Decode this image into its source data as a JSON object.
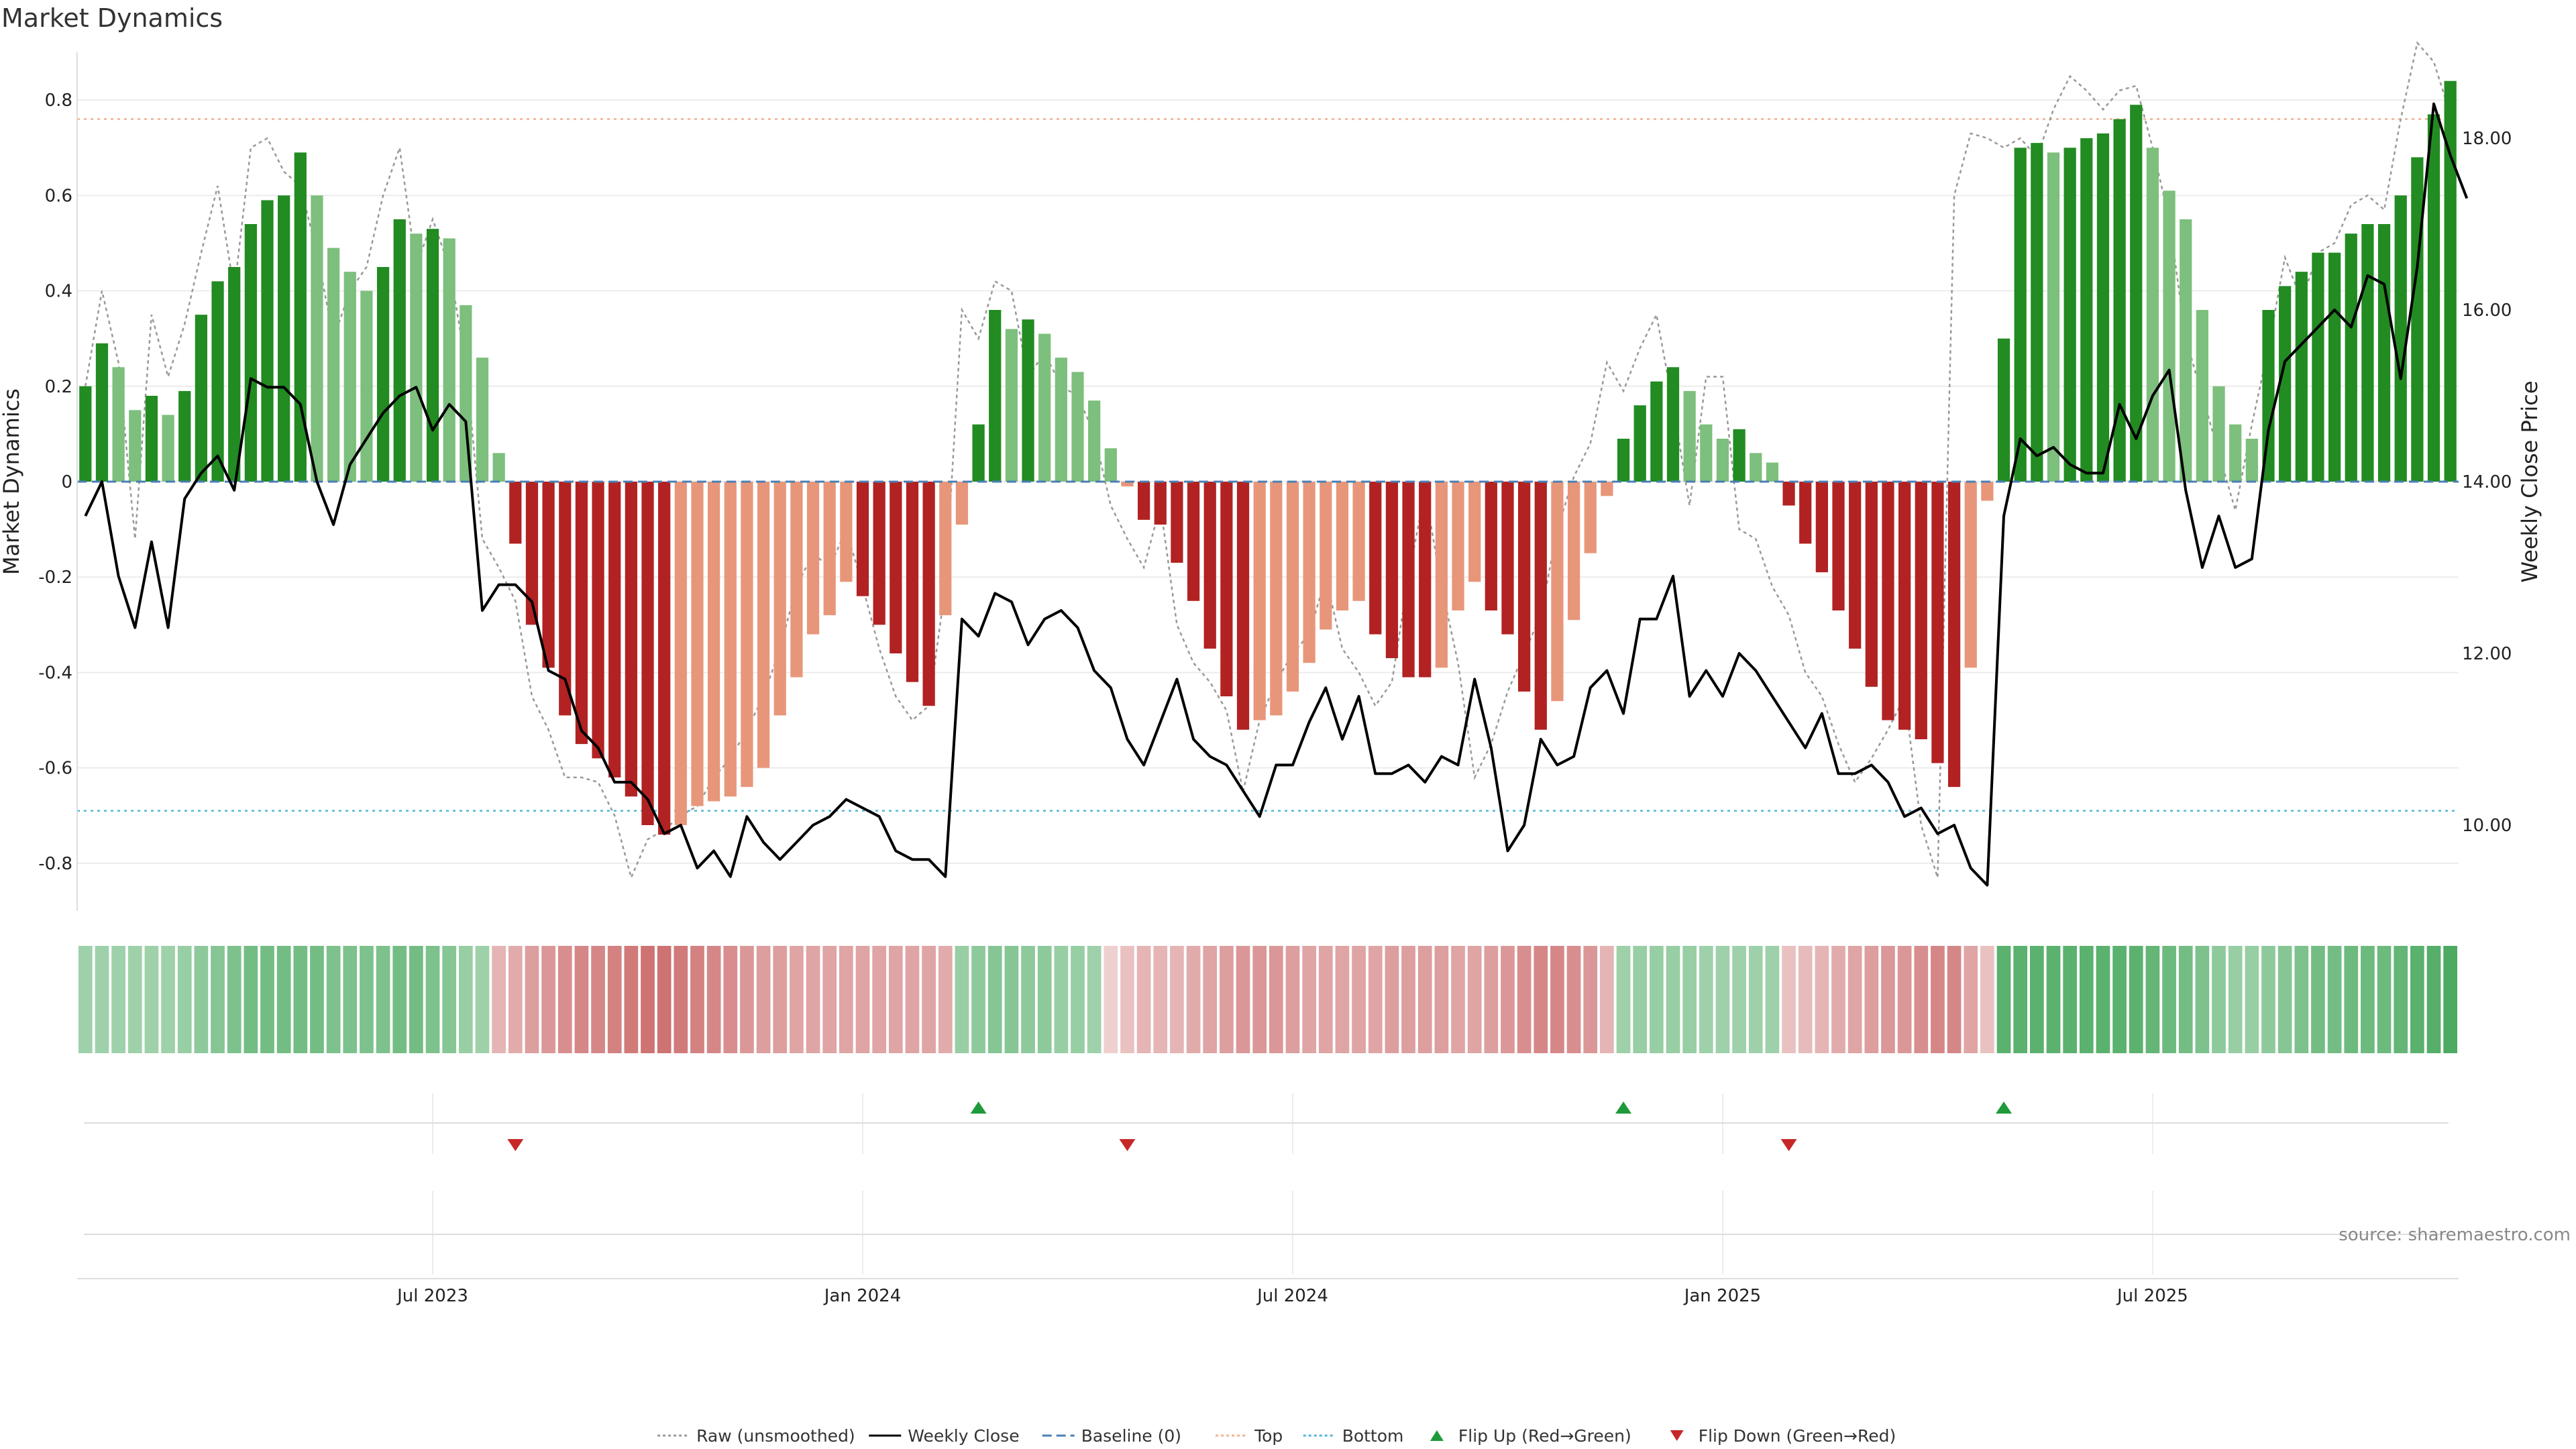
{
  "chart_data": {
    "type": "bar",
    "title": "Market Dynamics",
    "ylabel_left": "Market Dynamics",
    "ylabel_right": "Weekly Close Price",
    "ylim_left": [
      -0.9,
      0.9
    ],
    "yticks_left": [
      "0.8",
      "0.6",
      "0.4",
      "0.2",
      "0",
      "-0.2",
      "-0.4",
      "-0.6",
      "-0.8"
    ],
    "ylim_right": [
      9.0,
      19.0
    ],
    "yticks_right": [
      "18.00",
      "16.00",
      "14.00",
      "12.00",
      "10.00"
    ],
    "x_ticks": [
      "Jul 2023",
      "Jan 2024",
      "Jul 2024",
      "Jan 2025",
      "Jul 2025"
    ],
    "x_tick_week_index": [
      21,
      47,
      73,
      99,
      125
    ],
    "top_level": 0.76,
    "bottom_level": -0.69,
    "baseline": 0,
    "bars": [
      0.2,
      0.29,
      0.24,
      0.15,
      0.18,
      0.14,
      0.19,
      0.35,
      0.42,
      0.45,
      0.54,
      0.59,
      0.6,
      0.69,
      0.6,
      0.49,
      0.44,
      0.4,
      0.45,
      0.55,
      0.52,
      0.53,
      0.51,
      0.37,
      0.26,
      0.06,
      -0.13,
      -0.3,
      -0.39,
      -0.49,
      -0.55,
      -0.58,
      -0.62,
      -0.66,
      -0.72,
      -0.74,
      -0.72,
      -0.68,
      -0.67,
      -0.66,
      -0.64,
      -0.6,
      -0.49,
      -0.41,
      -0.32,
      -0.28,
      -0.21,
      -0.24,
      -0.3,
      -0.36,
      -0.42,
      -0.47,
      -0.28,
      -0.09,
      0.12,
      0.36,
      0.32,
      0.34,
      0.31,
      0.26,
      0.23,
      0.17,
      0.07,
      -0.01,
      -0.08,
      -0.09,
      -0.17,
      -0.25,
      -0.35,
      -0.45,
      -0.52,
      -0.5,
      -0.49,
      -0.44,
      -0.38,
      -0.31,
      -0.27,
      -0.25,
      -0.32,
      -0.37,
      -0.41,
      -0.41,
      -0.39,
      -0.27,
      -0.21,
      -0.27,
      -0.32,
      -0.44,
      -0.52,
      -0.46,
      -0.29,
      -0.15,
      -0.03,
      0.09,
      0.16,
      0.21,
      0.24,
      0.19,
      0.12,
      0.09,
      0.11,
      0.06,
      0.04,
      -0.05,
      -0.13,
      -0.19,
      -0.27,
      -0.35,
      -0.43,
      -0.5,
      -0.52,
      -0.54,
      -0.59,
      -0.64,
      -0.39,
      -0.04,
      0.3,
      0.7,
      0.71,
      0.69,
      0.7,
      0.72,
      0.73,
      0.76,
      0.79,
      0.7,
      0.61,
      0.55,
      0.36,
      0.2,
      0.12,
      0.09,
      0.36,
      0.41,
      0.44,
      0.48,
      0.48,
      0.52,
      0.54,
      0.54,
      0.6,
      0.68,
      0.77,
      0.84
    ],
    "raw": [
      0.2,
      0.4,
      0.25,
      -0.12,
      0.35,
      0.22,
      0.33,
      0.48,
      0.62,
      0.4,
      0.7,
      0.72,
      0.65,
      0.62,
      0.48,
      0.3,
      0.4,
      0.45,
      0.6,
      0.7,
      0.45,
      0.55,
      0.45,
      0.25,
      -0.12,
      -0.18,
      -0.25,
      -0.45,
      -0.52,
      -0.62,
      -0.62,
      -0.63,
      -0.7,
      -0.83,
      -0.75,
      -0.73,
      -0.7,
      -0.68,
      -0.62,
      -0.58,
      -0.52,
      -0.45,
      -0.35,
      -0.22,
      -0.15,
      -0.18,
      -0.1,
      -0.22,
      -0.35,
      -0.45,
      -0.5,
      -0.47,
      -0.22,
      0.36,
      0.3,
      0.42,
      0.4,
      0.22,
      0.27,
      0.2,
      0.18,
      0.1,
      -0.05,
      -0.12,
      -0.18,
      -0.05,
      -0.3,
      -0.38,
      -0.42,
      -0.48,
      -0.65,
      -0.5,
      -0.42,
      -0.36,
      -0.32,
      -0.2,
      -0.35,
      -0.4,
      -0.47,
      -0.42,
      -0.2,
      -0.02,
      -0.22,
      -0.38,
      -0.62,
      -0.55,
      -0.44,
      -0.36,
      -0.28,
      -0.1,
      0.01,
      0.08,
      0.25,
      0.19,
      0.28,
      0.35,
      0.16,
      -0.05,
      0.22,
      0.22,
      -0.1,
      -0.12,
      -0.22,
      -0.28,
      -0.4,
      -0.45,
      -0.55,
      -0.63,
      -0.58,
      -0.52,
      -0.45,
      -0.72,
      -0.83,
      0.6,
      0.73,
      0.72,
      0.7,
      0.72,
      0.68,
      0.78,
      0.85,
      0.82,
      0.78,
      0.82,
      0.83,
      0.7,
      0.55,
      0.3,
      0.18,
      0.06,
      -0.06,
      0.12,
      0.28,
      0.47,
      0.38,
      0.48,
      0.5,
      0.58,
      0.6,
      0.57,
      0.76,
      0.92,
      0.88,
      0.77
    ],
    "close": [
      13.6,
      14.0,
      12.9,
      12.3,
      13.3,
      12.3,
      13.8,
      14.1,
      14.3,
      13.9,
      15.2,
      15.1,
      15.1,
      14.9,
      14.0,
      13.5,
      14.2,
      14.5,
      14.8,
      15.0,
      15.1,
      14.6,
      14.9,
      14.7,
      12.5,
      12.8,
      12.8,
      12.6,
      11.8,
      11.7,
      11.1,
      10.9,
      10.5,
      10.5,
      10.3,
      9.9,
      10.0,
      9.5,
      9.7,
      9.4,
      10.1,
      9.8,
      9.6,
      9.8,
      10.0,
      10.1,
      10.3,
      10.2,
      10.1,
      9.7,
      9.6,
      9.6,
      9.4,
      12.4,
      12.2,
      12.7,
      12.6,
      12.1,
      12.4,
      12.5,
      12.3,
      11.8,
      11.6,
      11.0,
      10.7,
      11.2,
      11.7,
      11.0,
      10.8,
      10.7,
      10.4,
      10.1,
      10.7,
      10.7,
      11.2,
      11.6,
      11.0,
      11.5,
      10.6,
      10.6,
      10.7,
      10.5,
      10.8,
      10.7,
      11.7,
      10.9,
      9.7,
      10.0,
      11.0,
      10.7,
      10.8,
      11.6,
      11.8,
      11.3,
      12.4,
      12.4,
      12.9,
      11.5,
      11.8,
      11.5,
      12.0,
      11.8,
      11.5,
      11.2,
      10.9,
      11.3,
      10.6,
      10.6,
      10.7,
      10.5,
      10.1,
      10.2,
      9.9,
      10.0,
      9.5,
      9.3,
      13.6,
      14.5,
      14.3,
      14.4,
      14.2,
      14.1,
      14.1,
      14.9,
      14.5,
      15.0,
      15.3,
      13.9,
      13.0,
      13.6,
      13.0,
      13.1,
      14.6,
      15.4,
      15.6,
      15.8,
      16.0,
      15.8,
      16.4,
      16.3,
      15.2,
      16.5,
      18.4,
      17.8,
      17.3
    ],
    "regime_strip": [
      0.25,
      0.25,
      0.25,
      0.25,
      0.25,
      0.25,
      0.3,
      0.35,
      0.4,
      0.45,
      0.5,
      0.5,
      0.5,
      0.5,
      0.5,
      0.45,
      0.45,
      0.45,
      0.45,
      0.5,
      0.5,
      0.45,
      0.4,
      0.3,
      0.25,
      -0.3,
      -0.35,
      -0.45,
      -0.5,
      -0.55,
      -0.6,
      -0.6,
      -0.65,
      -0.7,
      -0.75,
      -0.75,
      -0.7,
      -0.65,
      -0.6,
      -0.55,
      -0.5,
      -0.45,
      -0.45,
      -0.4,
      -0.4,
      -0.4,
      -0.4,
      -0.4,
      -0.4,
      -0.4,
      -0.4,
      -0.4,
      -0.35,
      0.3,
      0.35,
      0.4,
      0.4,
      0.35,
      0.35,
      0.3,
      0.3,
      0.25,
      -0.1,
      -0.2,
      -0.3,
      -0.3,
      -0.3,
      -0.35,
      -0.4,
      -0.45,
      -0.5,
      -0.5,
      -0.5,
      -0.45,
      -0.4,
      -0.4,
      -0.4,
      -0.4,
      -0.4,
      -0.45,
      -0.45,
      -0.45,
      -0.45,
      -0.4,
      -0.4,
      -0.45,
      -0.5,
      -0.55,
      -0.6,
      -0.6,
      -0.55,
      -0.5,
      -0.3,
      0.25,
      0.3,
      0.3,
      0.3,
      0.3,
      0.25,
      0.25,
      0.25,
      0.25,
      0.25,
      -0.2,
      -0.25,
      -0.3,
      -0.35,
      -0.4,
      -0.45,
      -0.5,
      -0.5,
      -0.55,
      -0.6,
      -0.6,
      -0.4,
      -0.2,
      0.65,
      0.65,
      0.65,
      0.65,
      0.65,
      0.65,
      0.65,
      0.65,
      0.65,
      0.6,
      0.55,
      0.5,
      0.45,
      0.35,
      0.3,
      0.3,
      0.35,
      0.4,
      0.45,
      0.5,
      0.5,
      0.55,
      0.55,
      0.55,
      0.6,
      0.65,
      0.7,
      0.75
    ],
    "flip_up_week_index": [
      54,
      93,
      116
    ],
    "flip_down_week_index": [
      26,
      63,
      103
    ],
    "colors": {
      "pos_strong": "#228b22",
      "pos_weak": "#7dbf7d",
      "neg_strong": "#b22222",
      "neg_weak": "#e8967a",
      "close_line": "#000000",
      "raw_line": "#999999",
      "baseline": "#4a7fb5",
      "top": "#f0b090",
      "bottom": "#4fb7d9",
      "flip_up": "#1e9a3a",
      "flip_down": "#c62828"
    },
    "legend": [
      {
        "label": "Raw (unsmoothed)",
        "kind": "dotted-line",
        "color": "#999999"
      },
      {
        "label": "Weekly Close",
        "kind": "line",
        "color": "#000000"
      },
      {
        "label": "Baseline (0)",
        "kind": "dashed-line",
        "color": "#4a7fb5"
      },
      {
        "label": "Top",
        "kind": "dotted-line",
        "color": "#f0b090"
      },
      {
        "label": "Bottom",
        "kind": "dotted-line",
        "color": "#4fb7d9"
      },
      {
        "label": "Flip Up (Red→Green)",
        "kind": "triangle-up",
        "color": "#1e9a3a"
      },
      {
        "label": "Flip Down (Green→Red)",
        "kind": "triangle-down",
        "color": "#c62828"
      }
    ],
    "source": "source: sharemaestro.com"
  }
}
